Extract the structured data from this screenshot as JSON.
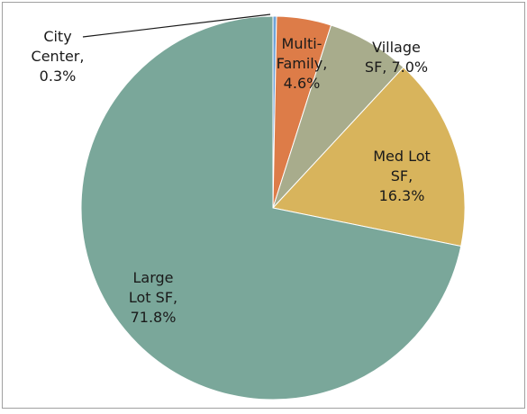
{
  "chart_data": {
    "type": "pie",
    "values": [
      0.3,
      4.6,
      7.0,
      16.3,
      71.8
    ],
    "value_labels": [
      "City Center, 0.3%",
      "Multi-Family, 4.6%",
      "Village SF, 7.0%",
      "Med Lot SF, 16.3%",
      "Large Lot SF, 71.8%"
    ],
    "colors": [
      "#6fa3d8",
      "#dd7c48",
      "#a8ac8c",
      "#d8b45c",
      "#7aa79a"
    ]
  }
}
